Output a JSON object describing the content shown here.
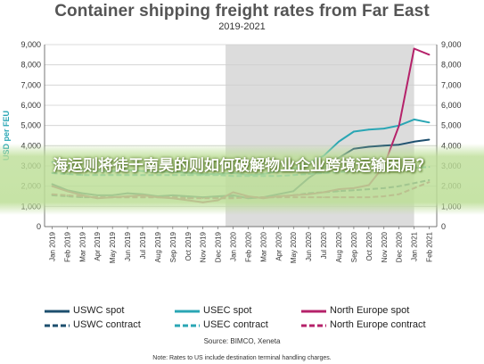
{
  "title": "Container shipping freight rates from Far East",
  "subtitle": "2019-2021",
  "headline": "海运则将徒于南昊的则如何破解物业企业跨境运输困局？",
  "source": "Source: BIMCO, Xeneta",
  "note": "Note: Rates to US include destination terminal handling charges.",
  "colors": {
    "uswc": "#1d4f6e",
    "usec": "#2aa6b4",
    "north_europe": "#b5226a",
    "shade": "#dcdcdc",
    "grid": "#cfcfcf"
  },
  "chart_data": {
    "type": "line",
    "title": "Container shipping freight rates from Far East",
    "subtitle": "2019-2021",
    "ylabel": "USD per FEU",
    "ylim": [
      0,
      9000
    ],
    "yticks": [
      "0",
      "1,000",
      "2,000",
      "3,000",
      "4,000",
      "5,000",
      "6,000",
      "7,000",
      "8,000",
      "9,000"
    ],
    "ytick_values": [
      0,
      1000,
      2000,
      3000,
      4000,
      5000,
      6000,
      7000,
      8000,
      9000
    ],
    "x": [
      "Jan 2019",
      "Feb 2019",
      "Mar 2019",
      "Apr 2019",
      "May 2019",
      "Jun 2019",
      "Jul 2019",
      "Aug 2019",
      "Sep 2019",
      "Oct 2019",
      "Nov 2019",
      "Dec 2019",
      "Jan 2020",
      "Feb 2020",
      "Mar 2020",
      "Apr 2020",
      "May 2020",
      "Jun 2020",
      "Jul 2020",
      "Aug 2020",
      "Sep 2020",
      "Oct 2020",
      "Nov 2020",
      "Dec 2020",
      "Jan 2021",
      "Feb 2021"
    ],
    "shaded_range": [
      "Jan 2020",
      "Jan 2021"
    ],
    "grid": true,
    "legend_position": "bottom",
    "series": [
      {
        "name": "USWC spot",
        "color": "#1d4f6e",
        "dash": false,
        "values": [
          2100,
          1800,
          1650,
          1550,
          1550,
          1650,
          1600,
          1500,
          1550,
          1500,
          1450,
          1500,
          1550,
          1400,
          1450,
          1600,
          1750,
          2400,
          2900,
          3400,
          3850,
          3950,
          4000,
          4050,
          4200,
          4300
        ]
      },
      {
        "name": "USWC contract",
        "color": "#1d4f6e",
        "dash": true,
        "values": [
          1550,
          1500,
          1450,
          1450,
          1450,
          1450,
          1450,
          1450,
          1450,
          1450,
          1450,
          1450,
          1450,
          1450,
          1450,
          1450,
          1550,
          1650,
          1700,
          1750,
          1800,
          1850,
          1900,
          2000,
          2150,
          2300
        ]
      },
      {
        "name": "USEC spot",
        "color": "#2aa6b4",
        "dash": false,
        "values": [
          3200,
          3000,
          2800,
          2750,
          2750,
          2800,
          2750,
          2700,
          2700,
          2650,
          2600,
          2600,
          2650,
          2550,
          2600,
          2750,
          2850,
          3150,
          3500,
          4200,
          4700,
          4800,
          4850,
          5000,
          5300,
          5150
        ]
      },
      {
        "name": "USEC contract",
        "color": "#2aa6b4",
        "dash": true,
        "values": [
          2650,
          2600,
          2550,
          2550,
          2550,
          2550,
          2550,
          2550,
          2550,
          2550,
          2550,
          2550,
          2500,
          2500,
          2500,
          2500,
          2550,
          2600,
          2650,
          2700,
          2750,
          2750,
          2800,
          2850,
          2900,
          2950
        ]
      },
      {
        "name": "North Europe spot",
        "color": "#b5226a",
        "dash": false,
        "values": [
          2000,
          1750,
          1550,
          1400,
          1450,
          1500,
          1550,
          1450,
          1400,
          1300,
          1200,
          1300,
          1700,
          1500,
          1400,
          1500,
          1550,
          1600,
          1700,
          1850,
          1900,
          2050,
          3000,
          5000,
          8800,
          8500
        ]
      },
      {
        "name": "North Europe contract",
        "color": "#b5226a",
        "dash": true,
        "values": [
          1600,
          1550,
          1500,
          1450,
          1450,
          1450,
          1450,
          1450,
          1450,
          1400,
          1400,
          1400,
          1400,
          1450,
          1450,
          1450,
          1450,
          1450,
          1450,
          1450,
          1450,
          1450,
          1500,
          1600,
          1900,
          2200
        ]
      }
    ]
  }
}
